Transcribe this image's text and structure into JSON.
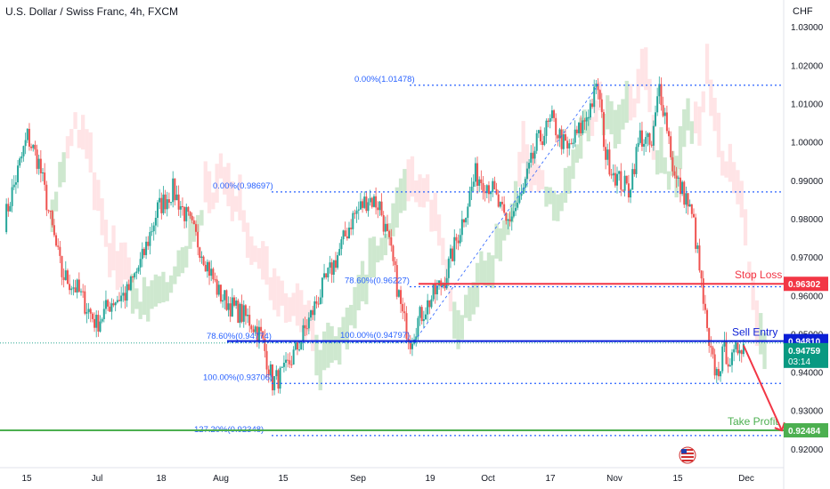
{
  "header": {
    "title": "U.S. Dollar / Swiss Franc, 4h, FXCM",
    "currency": "CHF"
  },
  "colors": {
    "up": "#26a69a",
    "down": "#ef5350",
    "fib": "#2962ff",
    "stop": "#f23645",
    "entry": "#0b1fd6",
    "target": "#4caf50",
    "last": "#089981"
  },
  "chart_data": {
    "type": "candlestick",
    "x_axis_labels": [
      "15",
      "Jul",
      "18",
      "Aug",
      "15",
      "Sep",
      "19",
      "Oct",
      "17",
      "Nov",
      "15",
      "Dec"
    ],
    "y_axis_labels": [
      "0.92000",
      "0.93000",
      "0.94000",
      "0.95000",
      "0.96000",
      "0.97000",
      "0.98000",
      "0.99000",
      "1.00000",
      "1.01000",
      "1.02000",
      "1.03000"
    ],
    "ylim": [
      0.9165,
      1.0312
    ],
    "series_path": [
      {
        "x": 0,
        "y": 0.9795
      },
      {
        "x": 3,
        "y": 0.9905
      },
      {
        "x": 6,
        "y": 1.0015
      },
      {
        "x": 9,
        "y": 0.9945
      },
      {
        "x": 12,
        "y": 0.9795
      },
      {
        "x": 15,
        "y": 0.9655
      },
      {
        "x": 19,
        "y": 0.9615
      },
      {
        "x": 24,
        "y": 0.9525
      },
      {
        "x": 28,
        "y": 0.9585
      },
      {
        "x": 32,
        "y": 0.9605
      },
      {
        "x": 36,
        "y": 0.9695
      },
      {
        "x": 40,
        "y": 0.9825
      },
      {
        "x": 44,
        "y": 0.9875
      },
      {
        "x": 48,
        "y": 0.9795
      },
      {
        "x": 52,
        "y": 0.9705
      },
      {
        "x": 56,
        "y": 0.9605
      },
      {
        "x": 60,
        "y": 0.9565
      },
      {
        "x": 64,
        "y": 0.9535
      },
      {
        "x": 67,
        "y": 0.9495
      },
      {
        "x": 70,
        "y": 0.9375
      },
      {
        "x": 73,
        "y": 0.9395
      },
      {
        "x": 77,
        "y": 0.9475
      },
      {
        "x": 82,
        "y": 0.9595
      },
      {
        "x": 87,
        "y": 0.9705
      },
      {
        "x": 91,
        "y": 0.9805
      },
      {
        "x": 95,
        "y": 0.9855
      },
      {
        "x": 98,
        "y": 0.9835
      },
      {
        "x": 101,
        "y": 0.9705
      },
      {
        "x": 104,
        "y": 0.9545
      },
      {
        "x": 106,
        "y": 0.9485
      },
      {
        "x": 108,
        "y": 0.9535
      },
      {
        "x": 111,
        "y": 0.9585
      },
      {
        "x": 115,
        "y": 0.9645
      },
      {
        "x": 119,
        "y": 0.9775
      },
      {
        "x": 123,
        "y": 0.9915
      },
      {
        "x": 127,
        "y": 0.9885
      },
      {
        "x": 131,
        "y": 0.9785
      },
      {
        "x": 135,
        "y": 0.9855
      },
      {
        "x": 139,
        "y": 0.9995
      },
      {
        "x": 143,
        "y": 1.0055
      },
      {
        "x": 147,
        "y": 0.9975
      },
      {
        "x": 151,
        "y": 1.0045
      },
      {
        "x": 155,
        "y": 1.0145
      },
      {
        "x": 157,
        "y": 0.9965
      },
      {
        "x": 160,
        "y": 0.9905
      },
      {
        "x": 163,
        "y": 0.9875
      },
      {
        "x": 166,
        "y": 1.0015
      },
      {
        "x": 169,
        "y": 0.9985
      },
      {
        "x": 171,
        "y": 1.0145
      },
      {
        "x": 173,
        "y": 1.0045
      },
      {
        "x": 175,
        "y": 0.9905
      },
      {
        "x": 178,
        "y": 0.9855
      },
      {
        "x": 180,
        "y": 0.9785
      },
      {
        "x": 182,
        "y": 0.9625
      },
      {
        "x": 184,
        "y": 0.9455
      },
      {
        "x": 186,
        "y": 0.9395
      },
      {
        "x": 188,
        "y": 0.9455
      },
      {
        "x": 190,
        "y": 0.9425
      },
      {
        "x": 192,
        "y": 0.9475
      },
      {
        "x": 193,
        "y": 0.9476
      }
    ],
    "fib_levels": [
      {
        "label": "0.00%(1.01478)",
        "value": 1.01478
      },
      {
        "label": "0.00%(0.98697)",
        "value": 0.98697
      },
      {
        "label": "78.60%(0.96227)",
        "value": 0.96227
      },
      {
        "label": "78.60%(0.94774)",
        "value": 0.94774
      },
      {
        "label": "100.00%(0.94797)",
        "value": 0.94797
      },
      {
        "label": "100.00%(0.93706)",
        "value": 0.93706
      },
      {
        "label": "127.20%(0.92348)",
        "value": 0.92348
      }
    ],
    "levels": [
      {
        "name": "Stop Loss",
        "value": 0.96302,
        "price_label": "0.96302"
      },
      {
        "name": "Sell Entry",
        "value": 0.9481,
        "price_label": "0.94810"
      },
      {
        "name": "Take Profit",
        "value": 0.92484,
        "price_label": "0.92484"
      }
    ],
    "last_price": {
      "label": "0.94759",
      "value": 0.94759,
      "countdown": "03:14"
    },
    "projection": [
      {
        "x": 193,
        "y": 0.947
      },
      {
        "x": 203,
        "y": 0.9248
      }
    ]
  }
}
